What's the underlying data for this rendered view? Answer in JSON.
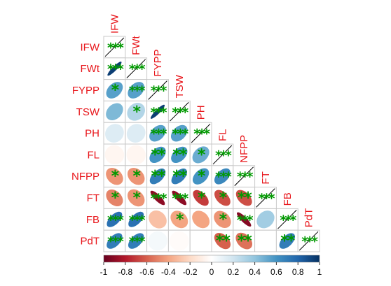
{
  "chart_data": {
    "type": "heatmap",
    "style": "lower-triangle correlation matrix with ellipses and significance stars",
    "variables": [
      "IFW",
      "FWt",
      "FYPP",
      "TSW",
      "PH",
      "FL",
      "NFPP",
      "FT",
      "FB",
      "PdT"
    ],
    "correlations": [
      [
        1.0
      ],
      [
        0.95,
        1.0
      ],
      [
        0.55,
        0.55,
        1.0
      ],
      [
        0.45,
        0.3,
        0.95,
        1.0
      ],
      [
        0.15,
        0.15,
        0.55,
        0.55,
        1.0
      ],
      [
        -0.05,
        -0.05,
        0.6,
        0.6,
        0.5,
        1.0
      ],
      [
        -0.45,
        -0.45,
        0.7,
        0.7,
        0.6,
        0.65,
        1.0
      ],
      [
        -0.5,
        -0.45,
        -0.9,
        -0.9,
        -0.7,
        -0.65,
        -0.65,
        1.0
      ],
      [
        0.75,
        0.75,
        -0.3,
        -0.4,
        -0.4,
        -0.45,
        -0.92,
        0.35,
        1.0
      ],
      [
        0.7,
        0.7,
        0.05,
        -0.02,
        0.0,
        -0.6,
        -0.55,
        0.0,
        0.7,
        1.0
      ]
    ],
    "significance": [
      [
        "***"
      ],
      [
        "***",
        "***"
      ],
      [
        "*",
        "***",
        "***"
      ],
      [
        "",
        "*",
        "***",
        "***"
      ],
      [
        "",
        "",
        "***",
        "***",
        "***"
      ],
      [
        "",
        "",
        "**",
        "**",
        "*",
        "***"
      ],
      [
        "*",
        "*",
        "**",
        "**",
        "*",
        "***",
        "***"
      ],
      [
        "*",
        "*",
        "***",
        "***",
        "*",
        "*",
        "**",
        "***"
      ],
      [
        "***",
        "***",
        "",
        "*",
        "",
        "*",
        "***",
        "",
        "***"
      ],
      [
        "***",
        "***",
        "",
        "",
        "",
        "**",
        "**",
        "",
        "**",
        "***"
      ]
    ],
    "colorbar": {
      "min": -1,
      "max": 1,
      "ticks": [
        "-1",
        "-0.8",
        "-0.6",
        "-0.4",
        "-0.2",
        "0",
        "0.2",
        "0.4",
        "0.6",
        "0.8",
        "1"
      ]
    },
    "colors": {
      "label": "#e8171c",
      "star": "#009900",
      "scale": [
        "#67001f",
        "#b2182b",
        "#d6604d",
        "#f4a582",
        "#fddbc7",
        "#ffffff",
        "#d1e5f0",
        "#92c5de",
        "#4393c3",
        "#2166ac",
        "#053061"
      ]
    }
  }
}
